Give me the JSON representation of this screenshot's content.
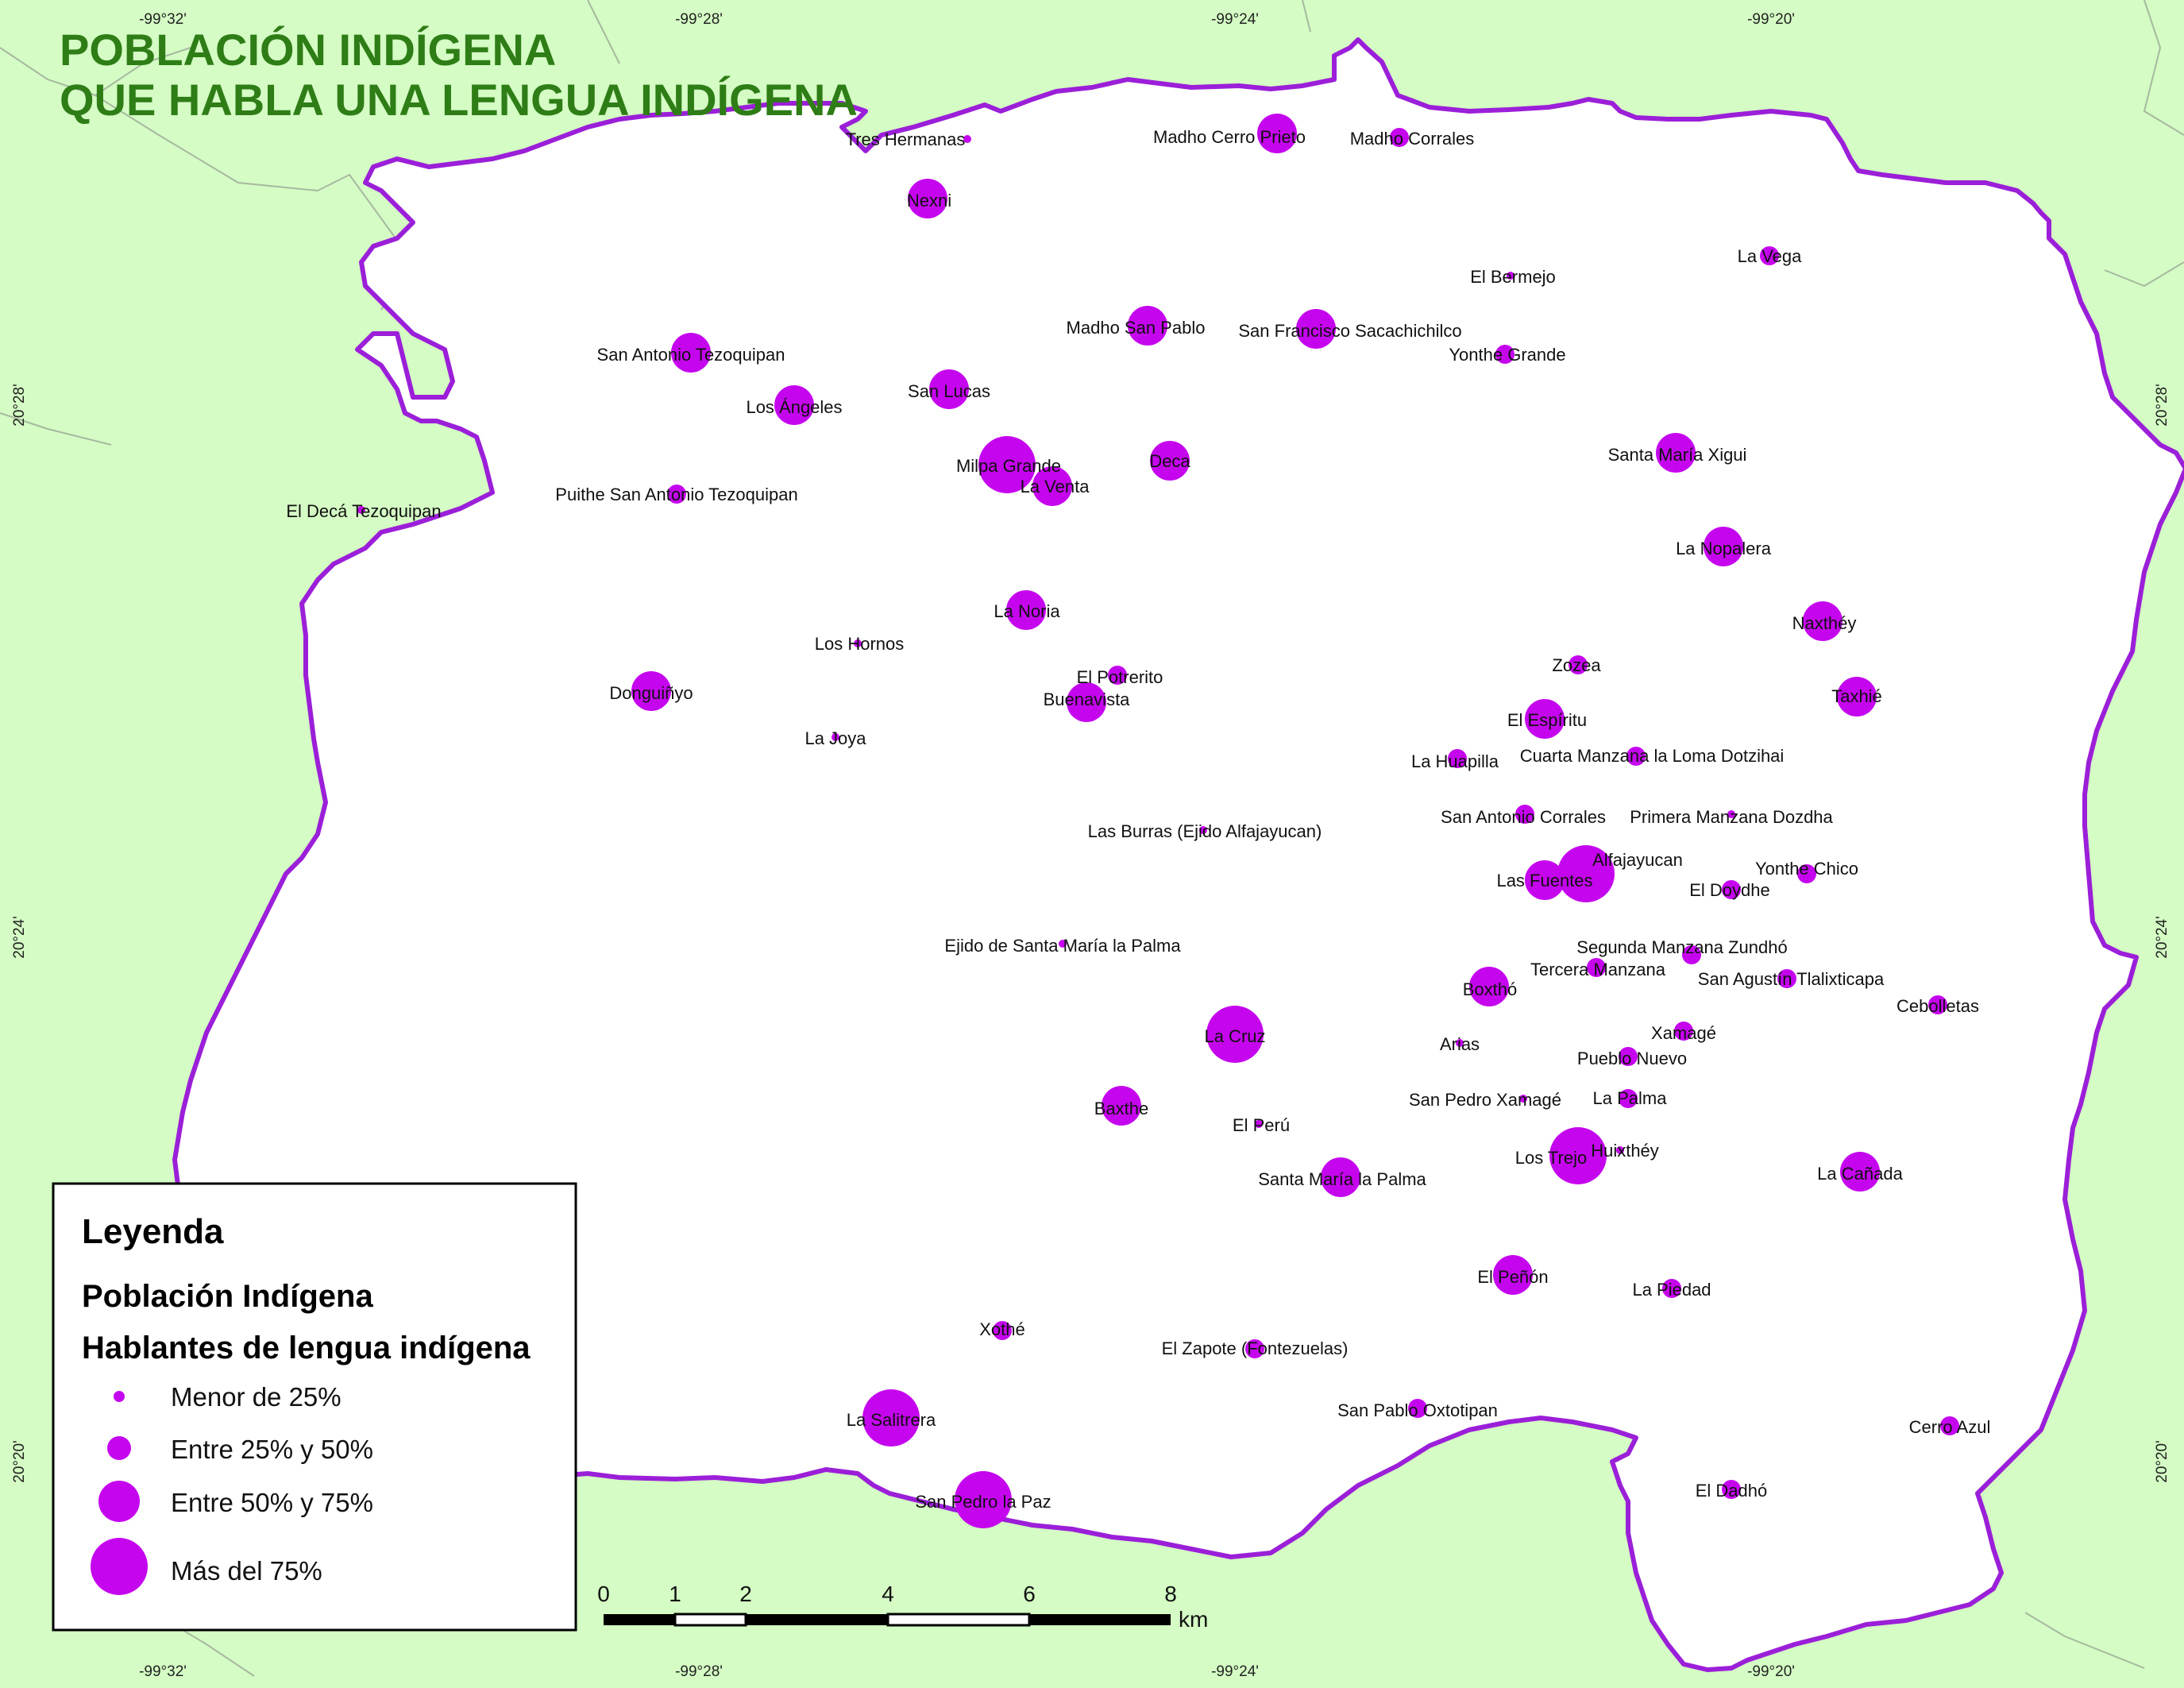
{
  "title": [
    "POBLACIÓN INDÍGENA",
    "QUE HABLA UNA LENGUA INDÍGENA"
  ],
  "colors": {
    "outside": "#d4fcc4",
    "inside": "#ffffff",
    "boundary": "#9b1fd8",
    "point": "#c505ee",
    "title": "#2e7d16"
  },
  "coordinates": {
    "longitudes": [
      "-99°32'",
      "-99°28'",
      "-99°24'",
      "-99°20'"
    ],
    "latitudes": [
      "20°28'",
      "20°24'",
      "20°20'"
    ]
  },
  "legend": {
    "title": "Leyenda",
    "subtitle1": "Población Indígena",
    "subtitle2": "Hablantes de lengua indígena",
    "classes": [
      "Menor de 25%",
      "Entre 25% y 50%",
      "Entre 50% y 75%",
      "Más del 75%"
    ]
  },
  "scale": {
    "ticks": [
      "0",
      "1",
      "2",
      "4",
      "6",
      "8"
    ],
    "unit": "km"
  },
  "localities": [
    {
      "name": "Tres Hermanas",
      "class": 1
    },
    {
      "name": "Madho Cerro Prieto",
      "class": 3
    },
    {
      "name": "Madho Corrales",
      "class": 2
    },
    {
      "name": "Nexni",
      "class": 3
    },
    {
      "name": "La Vega",
      "class": 2
    },
    {
      "name": "El Bermejo",
      "class": 1
    },
    {
      "name": "Madho San Pablo",
      "class": 3
    },
    {
      "name": "San Francisco Sacachichilco",
      "class": 3
    },
    {
      "name": "Yonthe Grande",
      "class": 2
    },
    {
      "name": "San Antonio Tezoquipan",
      "class": 3
    },
    {
      "name": "San Lucas",
      "class": 3
    },
    {
      "name": "Los Ángeles",
      "class": 3
    },
    {
      "name": "Santa María Xigui",
      "class": 3
    },
    {
      "name": "Milpa Grande",
      "class": 4
    },
    {
      "name": "Deca",
      "class": 3
    },
    {
      "name": "La Venta",
      "class": 3
    },
    {
      "name": "Puithe San Antonio Tezoquipan",
      "class": 2
    },
    {
      "name": "El Decá Tezoquipan",
      "class": 1
    },
    {
      "name": "La Nopalera",
      "class": 3
    },
    {
      "name": "La Noria",
      "class": 3
    },
    {
      "name": "Naxthéy",
      "class": 3
    },
    {
      "name": "Los Hornos",
      "class": 1
    },
    {
      "name": "Zozea",
      "class": 2
    },
    {
      "name": "El Potrerito",
      "class": 2
    },
    {
      "name": "Donguiñyo",
      "class": 3
    },
    {
      "name": "Buenavista",
      "class": 3
    },
    {
      "name": "Taxhié",
      "class": 3
    },
    {
      "name": "El Espíritu",
      "class": 3
    },
    {
      "name": "La Joya",
      "class": 1
    },
    {
      "name": "La Huapilla",
      "class": 2
    },
    {
      "name": "Cuarta Manzana la Loma Dotzihai",
      "class": 2
    },
    {
      "name": "San Antonio Corrales",
      "class": 2
    },
    {
      "name": "Primera Manzana Dozdha",
      "class": 1
    },
    {
      "name": "Las Burras (Ejido Alfajayucan)",
      "class": 1
    },
    {
      "name": "Alfajayucan",
      "class": 4
    },
    {
      "name": "Las Fuentes",
      "class": 3
    },
    {
      "name": "Yonthe Chico",
      "class": 2
    },
    {
      "name": "El Doydhe",
      "class": 2
    },
    {
      "name": "Ejido de Santa María la Palma",
      "class": 1
    },
    {
      "name": "Segunda Manzana Zundhó",
      "class": 2
    },
    {
      "name": "Tercera Manzana",
      "class": 2
    },
    {
      "name": "San Agustín Tlalixticapa",
      "class": 2
    },
    {
      "name": "Boxthó",
      "class": 3
    },
    {
      "name": "Cebolletas",
      "class": 2
    },
    {
      "name": "La Cruz",
      "class": 4
    },
    {
      "name": "Arias",
      "class": 1
    },
    {
      "name": "Xamagé",
      "class": 2
    },
    {
      "name": "Pueblo Nuevo",
      "class": 2
    },
    {
      "name": "San Pedro Xamagé",
      "class": 1
    },
    {
      "name": "La Palma",
      "class": 2
    },
    {
      "name": "Baxthe",
      "class": 3
    },
    {
      "name": "El Perú",
      "class": 1
    },
    {
      "name": "Los Trejo",
      "class": 4
    },
    {
      "name": "Huixthéy",
      "class": 1
    },
    {
      "name": "La Cañada",
      "class": 3
    },
    {
      "name": "Santa María la Palma",
      "class": 3
    },
    {
      "name": "El Peñón",
      "class": 3
    },
    {
      "name": "La Piedad",
      "class": 2
    },
    {
      "name": "Xothé",
      "class": 2
    },
    {
      "name": "El Zapote (Fontezuelas)",
      "class": 2
    },
    {
      "name": "San Pablo Oxtotipan",
      "class": 2
    },
    {
      "name": "La Salitrera",
      "class": 4
    },
    {
      "name": "Cerro Azul",
      "class": 2
    },
    {
      "name": "El Dadhó",
      "class": 2
    },
    {
      "name": "San Pedro la Paz",
      "class": 4
    }
  ]
}
